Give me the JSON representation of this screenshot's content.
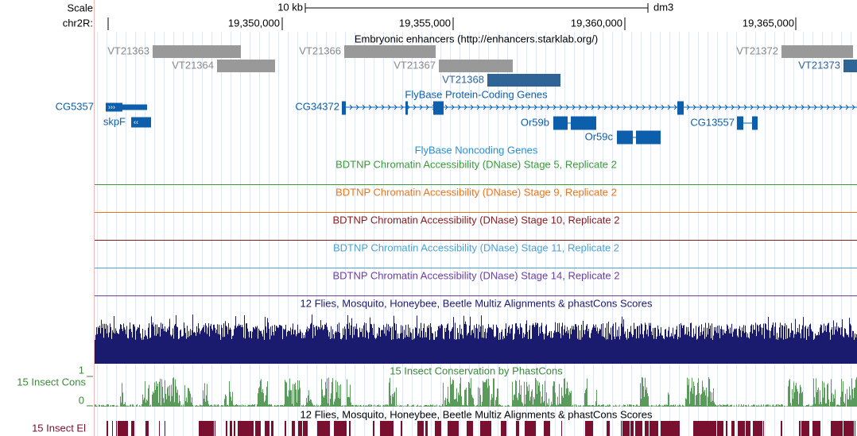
{
  "header": {
    "scale_label": "Scale",
    "scale_length": "10 kb",
    "assembly": "dm3",
    "chrom_label": "chr2R:",
    "positions": [
      "19,350,000",
      "19,355,000",
      "19,360,000",
      "19,365,000"
    ]
  },
  "tracks": [
    {
      "title": "Embryonic enhancers (http://enhancers.starklab.org/)",
      "features": [
        "VT21363",
        "VT21364",
        "VT21366",
        "VT21367",
        "VT21368",
        "VT21372",
        "VT21373"
      ]
    },
    {
      "title": "FlyBase Protein-Coding Genes",
      "features": [
        "CG5357",
        "skpF",
        "CG34372",
        "Or59b",
        "Or59c",
        "CG13557"
      ]
    },
    {
      "title": "FlyBase Noncoding Genes"
    },
    {
      "title": "BDTNP Chromatin Accessibility (DNase) Stage 5, Replicate 2"
    },
    {
      "title": "BDTNP Chromatin Accessibility (DNase) Stage 9, Replicate 2"
    },
    {
      "title": "BDTNP Chromatin Accessibility (DNase) Stage 10, Replicate 2"
    },
    {
      "title": "BDTNP Chromatin Accessibility (DNase) Stage 11, Replicate 2"
    },
    {
      "title": "BDTNP Chromatin Accessibility (DNase) Stage 14, Replicate 2"
    },
    {
      "title": "12 Flies, Mosquito, Honeybee, Beetle Multiz Alignments & phastCons Scores"
    },
    {
      "title": "15 Insect Conservation by PhastCons",
      "side_label": "15 Insect Cons",
      "axis_labels": [
        "1",
        "0"
      ]
    },
    {
      "title": "12 Flies, Mosquito, Honeybee, Beetle Multiz Alignments & phastCons Scores",
      "side_label": "15 Insect El"
    }
  ]
}
